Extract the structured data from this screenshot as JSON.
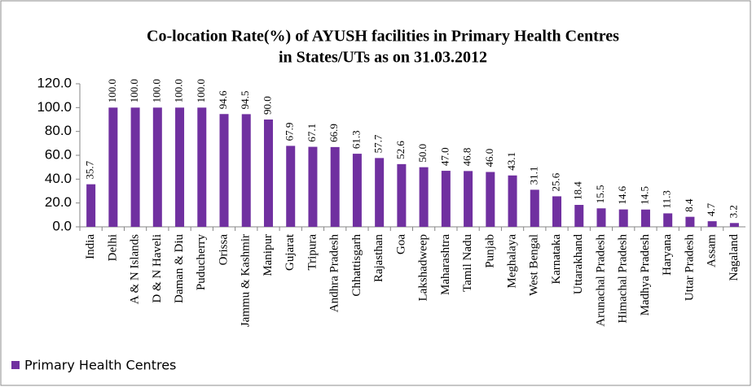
{
  "chart_data": {
    "type": "bar",
    "title": [
      "Co-location Rate(%) of AYUSH facilities in  Primary Health Centres",
      "in States/UTs as on 31.03.2012"
    ],
    "categories": [
      "India",
      "Delhi",
      "A & N Islands",
      "D & N Haveli",
      "Daman & Diu",
      "Puducherry",
      "Orissa",
      "Jammu & Kashmir",
      "Manipur",
      "Gujarat",
      "Tripura",
      "Andhra Pradesh",
      "Chhattisgarh",
      "Rajasthan",
      "Goa",
      "Lakshadweep",
      "Maharashtra",
      "Tamil Nadu",
      "Punjab",
      "Meghalaya",
      "West Bengal",
      "Karnataka",
      "Uttarakhand",
      "Arunachal Pradesh",
      "Himachal Pradesh",
      "Madhya Pradesh",
      "Haryana",
      "Uttar Pradesh",
      "Assam",
      "Nagaland"
    ],
    "series": [
      {
        "name": "Primary Health Centres",
        "color": "#7030a0",
        "values": [
          35.7,
          100,
          100,
          100,
          100,
          100,
          94.6,
          94.5,
          90,
          67.9,
          67.1,
          66.9,
          61.3,
          57.7,
          52.6,
          50,
          47,
          46.8,
          46,
          43.1,
          31.1,
          25.6,
          18.4,
          15.5,
          14.6,
          14.5,
          11.3,
          8.4,
          4.7,
          3.2
        ],
        "value_labels": [
          "35.7",
          "100.0",
          "100.0",
          "100.0",
          "100.0",
          "100.0",
          "94.6",
          "94.5",
          "90.0",
          "67.9",
          "67.1",
          "66.9",
          "61.3",
          "57.7",
          "52.6",
          "50.0",
          "47.0",
          "46.8",
          "46.0",
          "43.1",
          "31.1",
          "25.6",
          "18.4",
          "15.5",
          "14.6",
          "14.5",
          "11.3",
          "8.4",
          "4.7",
          "3.2"
        ]
      }
    ],
    "ylim": [
      0,
      120
    ],
    "yticks": [
      {
        "value": 0,
        "label": "0.0"
      },
      {
        "value": 20,
        "label": "20.0"
      },
      {
        "value": 40,
        "label": "40.0"
      },
      {
        "value": 60,
        "label": "60.0"
      },
      {
        "value": 80,
        "label": "80.0"
      },
      {
        "value": 100,
        "label": "100.0"
      },
      {
        "value": 120,
        "label": "120.0"
      }
    ],
    "legend": "bottom-left"
  }
}
